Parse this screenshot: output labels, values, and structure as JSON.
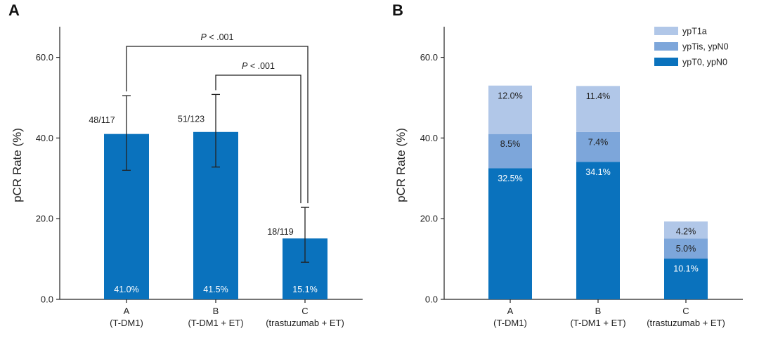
{
  "panels": [
    {
      "label": "A",
      "ylabel": "pCR Rate (%)",
      "significance": [
        {
          "from": 0,
          "to": 2,
          "p_italic": "P",
          "p_rest": " < .001"
        },
        {
          "from": 1,
          "to": 2,
          "p_italic": "P",
          "p_rest": " < .001"
        }
      ]
    },
    {
      "label": "B",
      "ylabel": "pCR Rate (%)"
    }
  ],
  "chart_data": [
    {
      "type": "bar",
      "title": "",
      "ylabel": "pCR Rate (%)",
      "ylim": [
        0,
        70
      ],
      "yticks": [
        "0.0",
        "20.0",
        "40.0",
        "60.0"
      ],
      "categories": [
        {
          "letter": "A",
          "name": "(T-DM1)"
        },
        {
          "letter": "B",
          "name": "(T-DM1 + ET)"
        },
        {
          "letter": "C",
          "name": "(trastuzumab + ET)"
        }
      ],
      "values": [
        41.0,
        41.5,
        15.1
      ],
      "value_labels": [
        "41.0%",
        "41.5%",
        "15.1%"
      ],
      "counts": [
        "48/117",
        "51/123",
        "18/119"
      ],
      "error_low": [
        32.0,
        32.8,
        9.2
      ],
      "error_high": [
        50.5,
        50.8,
        22.8
      ],
      "color": "#0a72bd"
    },
    {
      "type": "bar",
      "stacked": true,
      "title": "",
      "ylabel": "pCR Rate (%)",
      "ylim": [
        0,
        70
      ],
      "yticks": [
        "0.0",
        "20.0",
        "40.0",
        "60.0"
      ],
      "categories": [
        {
          "letter": "A",
          "name": "(T-DM1)"
        },
        {
          "letter": "B",
          "name": "(T-DM1 + ET)"
        },
        {
          "letter": "C",
          "name": "(trastuzumab + ET)"
        }
      ],
      "legend_position": "top-right",
      "series": [
        {
          "name": "ypT0, ypN0",
          "values": [
            32.5,
            34.1,
            10.1
          ],
          "labels": [
            "32.5%",
            "34.1%",
            "10.1%"
          ],
          "color": "#0a72bd",
          "label_color": "#ffffff"
        },
        {
          "name": "ypTis, ypN0",
          "values": [
            8.5,
            7.4,
            5.0
          ],
          "labels": [
            "8.5%",
            "7.4%",
            "5.0%"
          ],
          "color": "#7da6da",
          "label_color": "#222222"
        },
        {
          "name": "ypT1a",
          "values": [
            12.0,
            11.4,
            4.2
          ],
          "labels": [
            "12.0%",
            "11.4%",
            "4.2%"
          ],
          "color": "#b1c7e8",
          "label_color": "#222222"
        }
      ]
    }
  ]
}
